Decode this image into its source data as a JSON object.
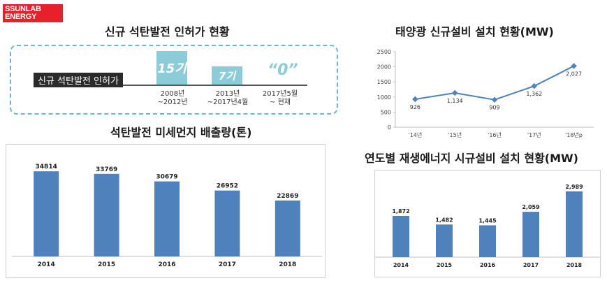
{
  "logo": {
    "line1": "SSUNLAB",
    "line2": "ENERGY"
  },
  "permits": {
    "title": "신규 석탄발전 인허가 현황",
    "label": "신규 석탄발전 인허가",
    "items": [
      {
        "value": "15기",
        "date_line1": "2008년",
        "date_line2": "~2012년"
      },
      {
        "value": "7기",
        "date_line1": "2013년",
        "date_line2": "~2017년4월"
      },
      {
        "value": "“0”",
        "date_line1": "2017년5월",
        "date_line2": "~ 현재"
      }
    ]
  },
  "chart_data": [
    {
      "id": "dust",
      "type": "bar",
      "title": "석탄발전 미세먼지 배출량(톤)",
      "categories": [
        "2014",
        "2015",
        "2016",
        "2017",
        "2018"
      ],
      "values": [
        34814,
        33769,
        30679,
        26952,
        22869
      ],
      "ylim": [
        0,
        40000
      ],
      "grid": false,
      "color": "#4f81bd"
    },
    {
      "id": "solar",
      "type": "line",
      "title": "태양광 신규설비 설치 현황(MW)",
      "categories": [
        "'14년",
        "'15년",
        "'16년",
        "'17년",
        "'18년p"
      ],
      "values": [
        926,
        1134,
        909,
        1362,
        2027
      ],
      "value_labels": [
        "926",
        "1,134",
        "909",
        "1,362",
        "2,027"
      ],
      "ylim": [
        0,
        2500
      ],
      "yticks": [
        0,
        500,
        1000,
        1500,
        2000,
        2500
      ],
      "ytick_labels": [
        "0",
        "500",
        "1000",
        "1500",
        "2000",
        "2500"
      ],
      "grid": false,
      "color": "#4f81bd"
    },
    {
      "id": "renew",
      "type": "bar",
      "title": "연도별 재생에너지 시규설비 설치 현황(MW)",
      "categories": [
        "2014",
        "2015",
        "2016",
        "2017",
        "2018"
      ],
      "values": [
        1872,
        1482,
        1445,
        2059,
        2989
      ],
      "value_labels": [
        "1,872",
        "1,482",
        "1,445",
        "2,059",
        "2,989"
      ],
      "ylim": [
        0,
        3300
      ],
      "grid": false,
      "color": "#4f81bd"
    }
  ]
}
